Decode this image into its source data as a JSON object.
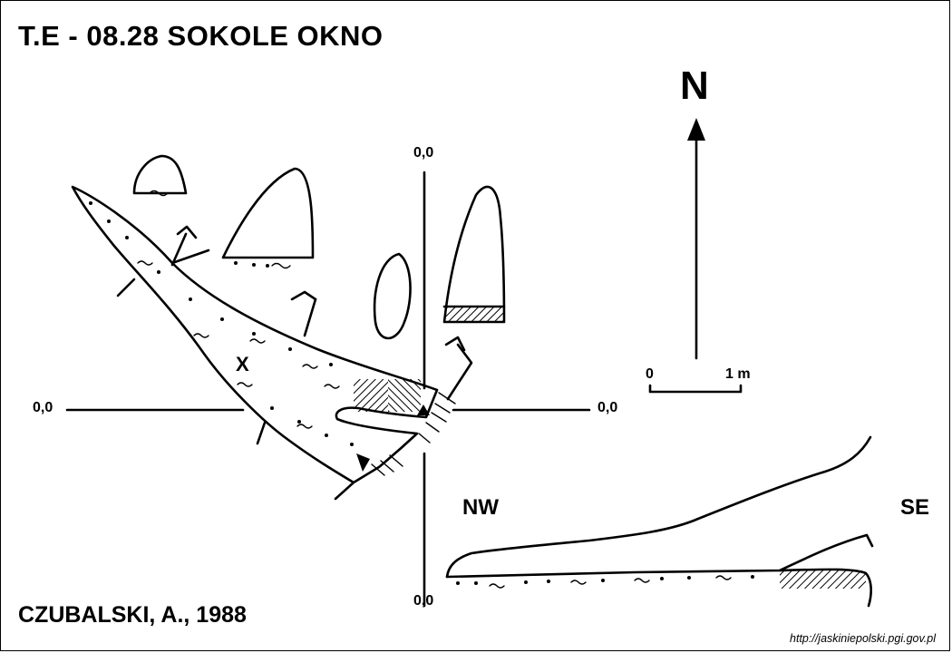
{
  "title": "T.E - 08.28  SOKOLE OKNO",
  "author": "CZUBALSKI, A., 1988",
  "source": "http://jaskiniepolski.pgi.gov.pl",
  "north_label": "N",
  "scale": {
    "zero": "0",
    "length": "1 m"
  },
  "coordinates": {
    "plan_top": "0,0",
    "plan_left": "0,0",
    "plan_right": "0,0",
    "section_origin": "0,0"
  },
  "section_directions": {
    "left": "NW",
    "right": "SE"
  },
  "plan_marker": "X"
}
